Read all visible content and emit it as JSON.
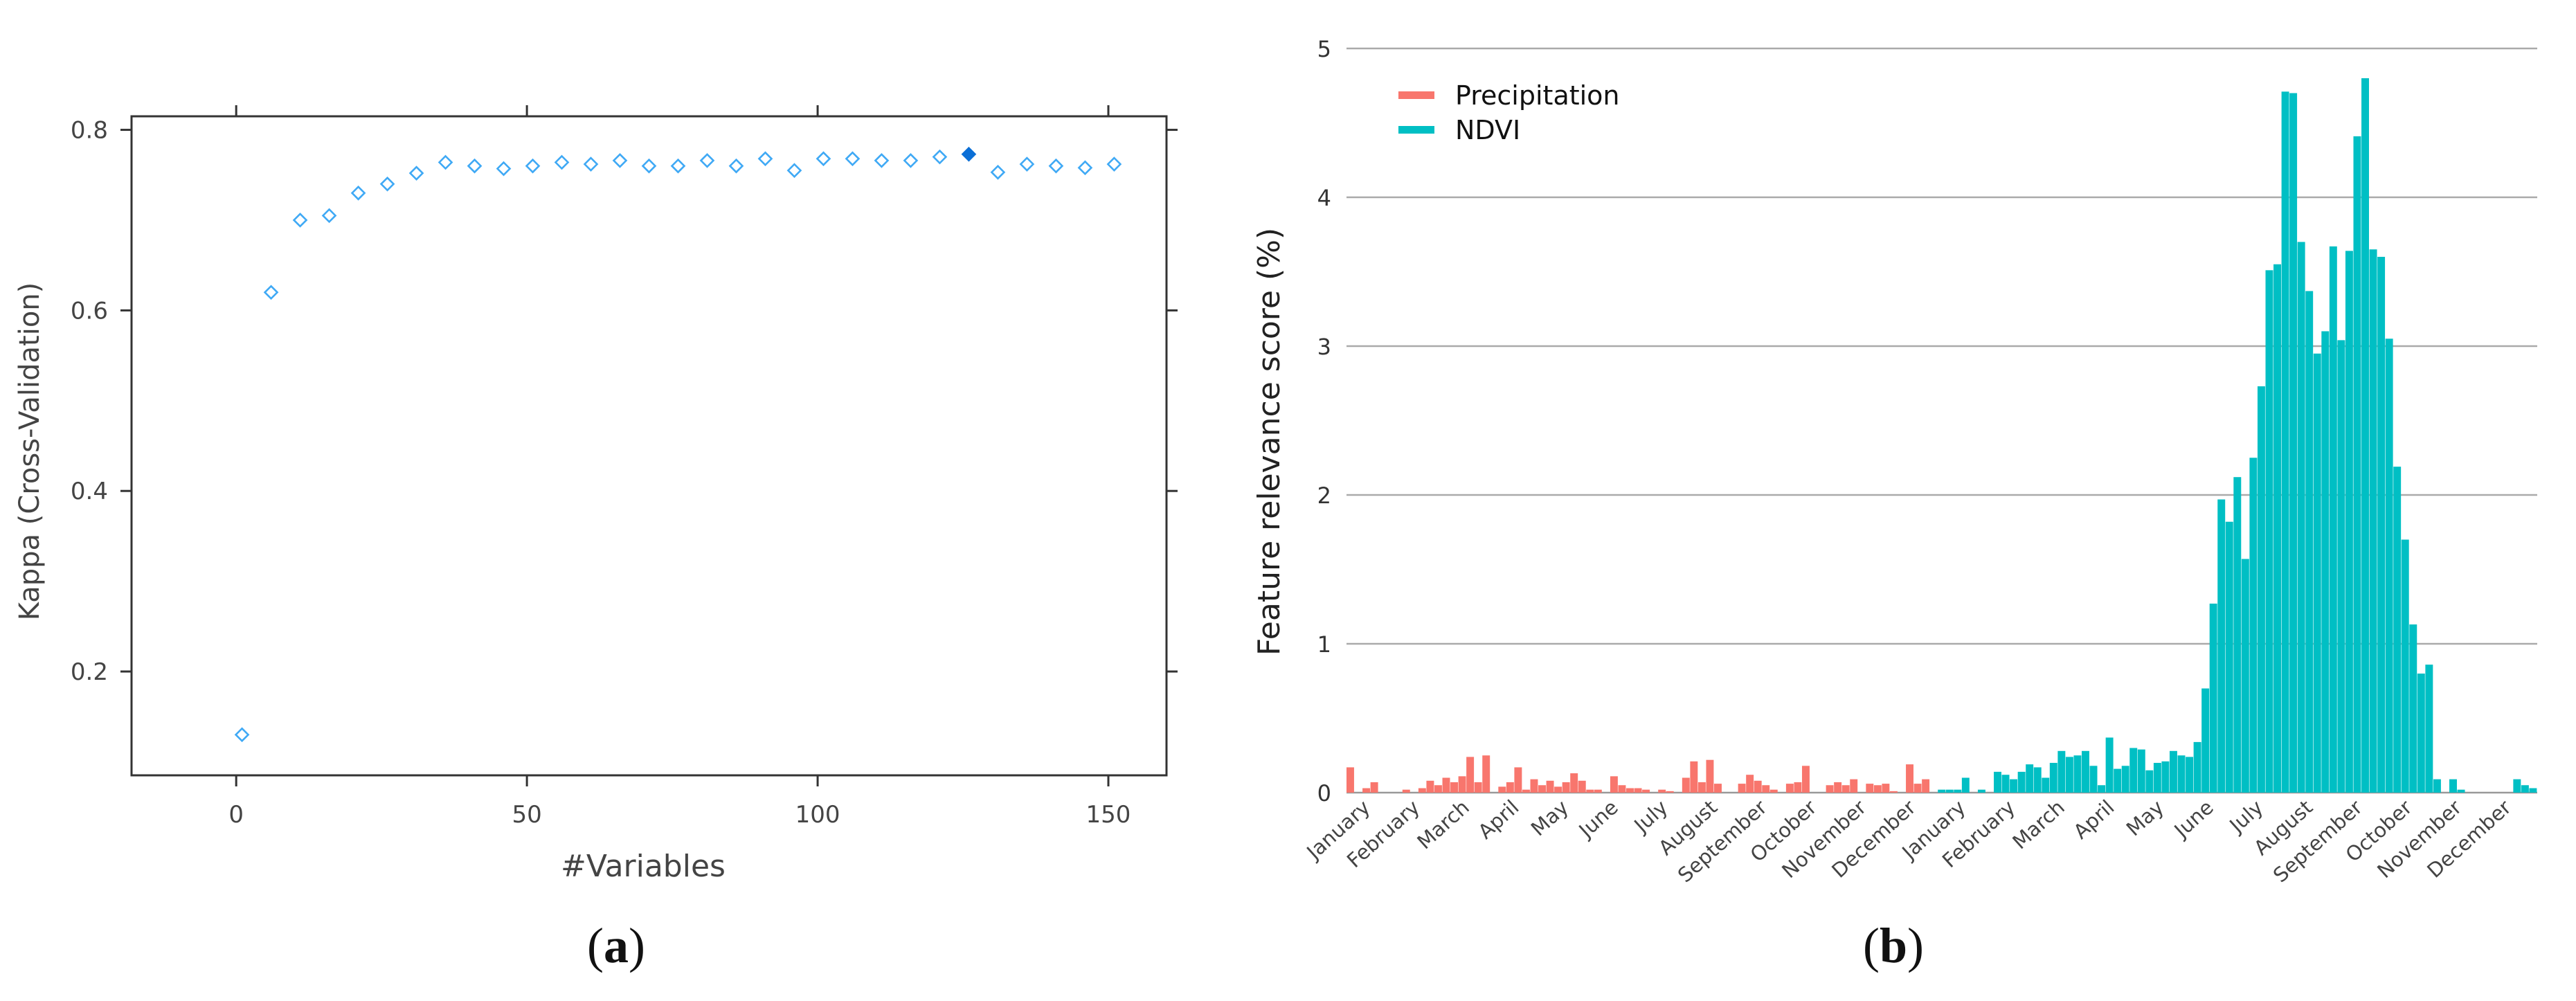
{
  "panel_a": {
    "caption": {
      "open": "(",
      "letter": "a",
      "close": ")"
    },
    "chart_data": {
      "type": "scatter",
      "title": "",
      "xlabel": "#Variables",
      "ylabel": "Kappa (Cross-Validation)",
      "xlim": [
        -18,
        160
      ],
      "ylim": [
        0.085,
        0.815
      ],
      "xticks": [
        0,
        50,
        100,
        150
      ],
      "yticks": [
        0.2,
        0.4,
        0.6,
        0.8
      ],
      "grid": false,
      "points": [
        {
          "x": 1,
          "y": 0.13
        },
        {
          "x": 6,
          "y": 0.62
        },
        {
          "x": 11,
          "y": 0.7
        },
        {
          "x": 16,
          "y": 0.705
        },
        {
          "x": 21,
          "y": 0.73
        },
        {
          "x": 26,
          "y": 0.74
        },
        {
          "x": 31,
          "y": 0.752
        },
        {
          "x": 36,
          "y": 0.764
        },
        {
          "x": 41,
          "y": 0.76
        },
        {
          "x": 46,
          "y": 0.757
        },
        {
          "x": 51,
          "y": 0.76
        },
        {
          "x": 56,
          "y": 0.764
        },
        {
          "x": 61,
          "y": 0.762
        },
        {
          "x": 66,
          "y": 0.766
        },
        {
          "x": 71,
          "y": 0.76
        },
        {
          "x": 76,
          "y": 0.76
        },
        {
          "x": 81,
          "y": 0.766
        },
        {
          "x": 86,
          "y": 0.76
        },
        {
          "x": 91,
          "y": 0.768
        },
        {
          "x": 96,
          "y": 0.755
        },
        {
          "x": 101,
          "y": 0.768
        },
        {
          "x": 106,
          "y": 0.768
        },
        {
          "x": 111,
          "y": 0.766
        },
        {
          "x": 116,
          "y": 0.766
        },
        {
          "x": 121,
          "y": 0.77
        },
        {
          "x": 126,
          "y": 0.773
        },
        {
          "x": 131,
          "y": 0.753
        },
        {
          "x": 136,
          "y": 0.762
        },
        {
          "x": 141,
          "y": 0.76
        },
        {
          "x": 146,
          "y": 0.758
        },
        {
          "x": 151,
          "y": 0.762
        }
      ],
      "highlight_index": 25,
      "marker_color": "#3fa9f5",
      "highlight_color": "#0b6fd6"
    }
  },
  "panel_b": {
    "caption": {
      "open": "(",
      "letter": "b",
      "close": ")"
    },
    "chart_data": {
      "type": "bar",
      "title": "",
      "xlabel": "",
      "ylabel": "Feature relevance score (%)",
      "ylim": [
        0,
        5
      ],
      "yticks": [
        0,
        1,
        2,
        3,
        4,
        5
      ],
      "grid": true,
      "legend_position": "top-left",
      "xtick_labels": [
        "January",
        "February",
        "March",
        "April",
        "May",
        "June",
        "July",
        "August",
        "September",
        "October",
        "November",
        "December",
        "January",
        "February",
        "March",
        "April",
        "May",
        "June",
        "July",
        "August",
        "September",
        "October",
        "November",
        "December"
      ],
      "series": [
        {
          "name": "Precipitation",
          "color": "#f8766d",
          "values": [
            0.17,
            0.0,
            0.03,
            0.07,
            0.0,
            0.0,
            0.0,
            0.02,
            0.0,
            0.03,
            0.08,
            0.05,
            0.1,
            0.07,
            0.11,
            0.24,
            0.07,
            0.25,
            0.0,
            0.04,
            0.07,
            0.17,
            0.02,
            0.09,
            0.05,
            0.08,
            0.04,
            0.07,
            0.13,
            0.08,
            0.02,
            0.02,
            0.0,
            0.11,
            0.05,
            0.03,
            0.03,
            0.02,
            0.0,
            0.02,
            0.01,
            0.0,
            0.1,
            0.21,
            0.07,
            0.22,
            0.06,
            0.0,
            0.0,
            0.06,
            0.12,
            0.08,
            0.05,
            0.02,
            0.0,
            0.06,
            0.07,
            0.18,
            0.0,
            0.0,
            0.05,
            0.07,
            0.05,
            0.09,
            0.0,
            0.06,
            0.05,
            0.06,
            0.01,
            0.0,
            0.19,
            0.06,
            0.09,
            0.0
          ]
        },
        {
          "name": "NDVI",
          "color": "#00bfc4",
          "values": [
            0.0,
            0.0,
            0.0,
            0.0,
            0.0,
            0.0,
            0.0,
            0.0,
            0.0,
            0.0,
            0.0,
            0.0,
            0.0,
            0.0,
            0.0,
            0.0,
            0.0,
            0.0,
            0.0,
            0.0,
            0.0,
            0.0,
            0.0,
            0.0,
            0.0,
            0.0,
            0.0,
            0.0,
            0.0,
            0.0,
            0.0,
            0.0,
            0.0,
            0.0,
            0.0,
            0.0,
            0.0,
            0.0,
            0.0,
            0.0,
            0.0,
            0.0,
            0.0,
            0.0,
            0.0,
            0.0,
            0.0,
            0.0,
            0.0,
            0.0,
            0.0,
            0.0,
            0.0,
            0.0,
            0.0,
            0.0,
            0.0,
            0.0,
            0.0,
            0.0,
            0.0,
            0.0,
            0.0,
            0.0,
            0.0,
            0.0,
            0.0,
            0.0,
            0.0,
            0.0,
            0.0,
            0.0,
            0.0,
            0.0,
            0.02,
            0.02,
            0.02,
            0.1,
            0.0,
            0.02,
            0.0,
            0.14,
            0.12,
            0.09,
            0.14,
            0.19,
            0.17,
            0.1,
            0.2,
            0.28,
            0.24,
            0.25,
            0.28,
            0.18,
            0.05,
            0.37,
            0.16,
            0.18,
            0.3,
            0.29,
            0.15,
            0.2,
            0.21,
            0.28,
            0.25,
            0.24,
            0.34,
            0.7,
            1.27,
            1.97,
            1.82,
            2.12,
            1.57,
            2.25,
            2.73,
            3.51,
            3.55,
            4.71,
            4.7,
            3.7,
            3.37,
            2.95,
            3.1,
            3.67,
            3.04,
            3.64,
            4.41,
            4.8,
            3.65,
            3.6,
            3.05,
            2.19,
            1.7,
            1.13,
            0.8,
            0.86,
            0.09,
            0.0,
            0.09,
            0.02,
            0.0,
            0.0,
            0.0,
            0.0,
            0.0,
            0.0,
            0.09,
            0.05,
            0.03
          ]
        }
      ]
    }
  }
}
